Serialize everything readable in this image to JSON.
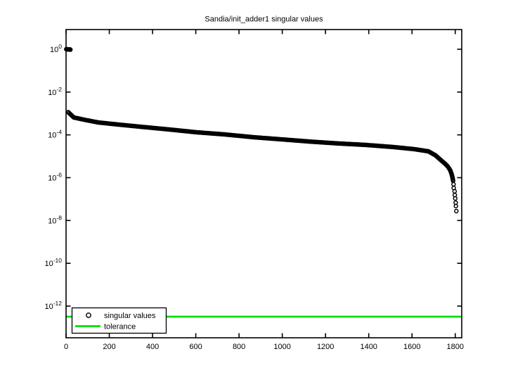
{
  "chart_data": {
    "type": "scatter",
    "title": "Sandia/init_adder1 singular values",
    "xlabel": "",
    "ylabel": "",
    "xlim": [
      0,
      1830
    ],
    "ylim_exponents": [
      -13.48,
      0.92
    ],
    "x_ticks": [
      0,
      200,
      400,
      600,
      800,
      1000,
      1200,
      1400,
      1600,
      1800
    ],
    "y_tick_exponents": [
      0,
      -2,
      -4,
      -6,
      -8,
      -10,
      -12
    ],
    "grid": "off",
    "marker": "open-circle",
    "marker_color": "#000000",
    "tolerance": 3.2e-13,
    "tolerance_color": "#00e000",
    "legend": {
      "position": "bottom-left-inside",
      "items": [
        {
          "label": "singular values",
          "marker": "circle",
          "color": "#000000"
        },
        {
          "label": "tolerance",
          "marker": "line",
          "color": "#00e000"
        }
      ]
    },
    "series": {
      "name": "singular values",
      "top_points": [
        [
          1,
          1.0
        ],
        [
          3,
          1.0
        ],
        [
          5,
          1.0
        ],
        [
          7,
          0.99
        ],
        [
          9,
          0.99
        ],
        [
          11,
          0.99
        ],
        [
          13,
          0.98
        ],
        [
          15,
          0.98
        ],
        [
          17,
          0.97
        ],
        [
          19,
          0.97
        ],
        [
          20,
          0.96
        ]
      ],
      "curve_points": [
        [
          10,
          0.00115
        ],
        [
          36,
          0.00065
        ],
        [
          84,
          0.00051
        ],
        [
          149,
          0.00038
        ],
        [
          247,
          0.0003
        ],
        [
          344,
          0.00024
        ],
        [
          474,
          0.00018
        ],
        [
          604,
          0.000132
        ],
        [
          734,
          0.000105
        ],
        [
          864,
          7.8e-05
        ],
        [
          994,
          6.2e-05
        ],
        [
          1124,
          4.9e-05
        ],
        [
          1254,
          4e-05
        ],
        [
          1384,
          3.4e-05
        ],
        [
          1514,
          2.7e-05
        ],
        [
          1611,
          2.15e-05
        ],
        [
          1676,
          1.7e-05
        ],
        [
          1709,
          1.1e-05
        ],
        [
          1735,
          6.4e-06
        ],
        [
          1754,
          4.4e-06
        ],
        [
          1767,
          3.2e-06
        ],
        [
          1777,
          2.2e-06
        ],
        [
          1783,
          1.5e-06
        ],
        [
          1787,
          1.05e-06
        ],
        [
          1790,
          7.1e-07
        ]
      ],
      "tail_points": [
        [
          1792,
          4.9e-07
        ],
        [
          1793,
          3.3e-07
        ],
        [
          1797,
          2.3e-07
        ],
        [
          1798,
          1.55e-07
        ],
        [
          1800,
          1.07e-07
        ],
        [
          1802,
          6.8e-08
        ],
        [
          1803,
          4.7e-08
        ],
        [
          1805,
          2.75e-08
        ]
      ]
    }
  }
}
